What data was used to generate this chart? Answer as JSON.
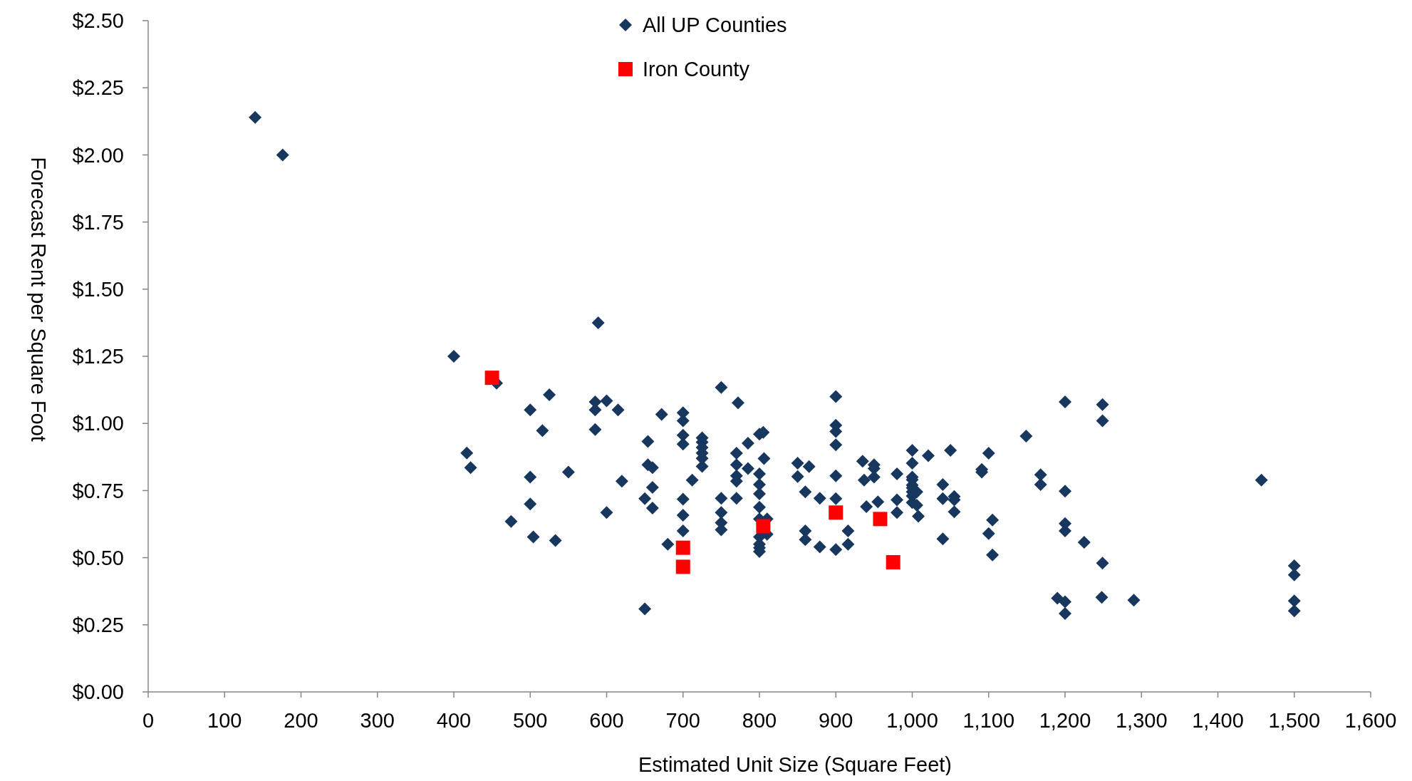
{
  "chart_data": {
    "type": "scatter",
    "xlabel": "Estimated Unit Size (Square Feet)",
    "ylabel": "Forecast Rent per Square Foot",
    "xlim": [
      0,
      1600
    ],
    "xticks": [
      0,
      100,
      200,
      300,
      400,
      500,
      600,
      700,
      800,
      900,
      {
        "value": 1000,
        "label": "1,000"
      },
      {
        "value": 1100,
        "label": "1,100"
      },
      {
        "value": 1200,
        "label": "1,200"
      },
      {
        "value": 1300,
        "label": "1,300"
      },
      {
        "value": 1400,
        "label": "1,400"
      },
      {
        "value": 1500,
        "label": "1,500"
      },
      {
        "value": 1600,
        "label": "1,600"
      }
    ],
    "ylim": [
      0,
      2.5
    ],
    "yticks": [
      {
        "value": 0,
        "label": "$0.00"
      },
      {
        "value": 0.25,
        "label": "$0.25"
      },
      {
        "value": 0.5,
        "label": "$0.50"
      },
      {
        "value": 0.75,
        "label": "$0.75"
      },
      {
        "value": 1,
        "label": "$1.00"
      },
      {
        "value": 1.25,
        "label": "$1.25"
      },
      {
        "value": 1.5,
        "label": "$1.50"
      },
      {
        "value": 1.75,
        "label": "$1.75"
      },
      {
        "value": 2,
        "label": "$2.00"
      },
      {
        "value": 2.25,
        "label": "$2.25"
      },
      {
        "value": 2.5,
        "label": "$2.50"
      }
    ],
    "grid": false,
    "legend": "top",
    "series": [
      {
        "name": "All UP Counties",
        "color": "#17375e",
        "marker": "diamond",
        "x": [
          140,
          176,
          400,
          417,
          422,
          456,
          475,
          500,
          500,
          500,
          504,
          516,
          525,
          533,
          550,
          585,
          585,
          585,
          589,
          600,
          615,
          600,
          620,
          654,
          654,
          660,
          660,
          660,
          650,
          650,
          672,
          680,
          700,
          700,
          700,
          700,
          700,
          700,
          700,
          712,
          750,
          750,
          750,
          750,
          750,
          725,
          725,
          725,
          725,
          725,
          725,
          772,
          770,
          770,
          770,
          770,
          770,
          785,
          785,
          800,
          805,
          800,
          800,
          800,
          800,
          800,
          800,
          800,
          806,
          810,
          810,
          800,
          800,
          850,
          850,
          865,
          860,
          860,
          860,
          879,
          879,
          900,
          900,
          900,
          900,
          900,
          900,
          900,
          916,
          916,
          935,
          937,
          940,
          950,
          950,
          950,
          955,
          980,
          980,
          980,
          1000,
          1000,
          1000,
          1000,
          1000,
          1000,
          1000,
          1000,
          1000,
          1006,
          1006,
          1008,
          1021,
          1050,
          1040,
          1040,
          1040,
          1055,
          1055,
          1055,
          1091,
          1091,
          1100,
          1105,
          1100,
          1105,
          1149,
          1168,
          1168,
          1200,
          1200,
          1200,
          1200,
          1200,
          1200,
          1190,
          1225,
          1249,
          1249,
          1249,
          1248,
          1290,
          1457,
          1500,
          1500,
          1500,
          1500
        ],
        "values": [
          2.14,
          2.0,
          1.25,
          0.89,
          0.835,
          1.15,
          0.635,
          1.05,
          0.8,
          0.7,
          0.577,
          0.973,
          1.107,
          0.564,
          0.819,
          1.08,
          1.05,
          0.977,
          1.375,
          1.084,
          1.05,
          0.668,
          0.785,
          0.933,
          0.846,
          0.835,
          0.762,
          0.685,
          0.72,
          0.309,
          1.034,
          0.55,
          1.04,
          1.01,
          0.956,
          0.923,
          0.718,
          0.658,
          0.6,
          0.789,
          1.134,
          0.721,
          0.668,
          0.63,
          0.604,
          0.946,
          0.93,
          0.91,
          0.89,
          0.87,
          0.84,
          1.077,
          0.889,
          0.846,
          0.805,
          0.785,
          0.721,
          0.832,
          0.926,
          0.96,
          0.967,
          0.812,
          0.772,
          0.738,
          0.688,
          0.644,
          0.537,
          0.523,
          0.869,
          0.587,
          0.644,
          0.577,
          0.55,
          0.852,
          0.802,
          0.839,
          0.745,
          0.6,
          0.567,
          0.721,
          0.54,
          1.1,
          0.993,
          0.97,
          0.92,
          0.805,
          0.72,
          0.53,
          0.6,
          0.55,
          0.859,
          0.789,
          0.69,
          0.846,
          0.832,
          0.8,
          0.708,
          0.812,
          0.715,
          0.668,
          0.9,
          0.852,
          0.8,
          0.79,
          0.77,
          0.76,
          0.745,
          0.73,
          0.705,
          0.745,
          0.695,
          0.654,
          0.88,
          0.9,
          0.772,
          0.72,
          0.57,
          0.728,
          0.715,
          0.671,
          0.829,
          0.819,
          0.889,
          0.64,
          0.59,
          0.51,
          0.953,
          0.809,
          0.772,
          1.08,
          0.748,
          0.627,
          0.6,
          0.336,
          0.292,
          0.349,
          0.557,
          1.07,
          1.01,
          0.48,
          0.352,
          0.342,
          0.789,
          0.47,
          0.436,
          0.339,
          0.302
        ]
      },
      {
        "name": "Iron County",
        "color": "#ff0000",
        "marker": "square",
        "x": [
          450,
          700,
          700,
          805,
          900,
          958,
          975
        ],
        "values": [
          1.17,
          0.537,
          0.466,
          0.617,
          0.668,
          0.644,
          0.483
        ]
      }
    ]
  }
}
